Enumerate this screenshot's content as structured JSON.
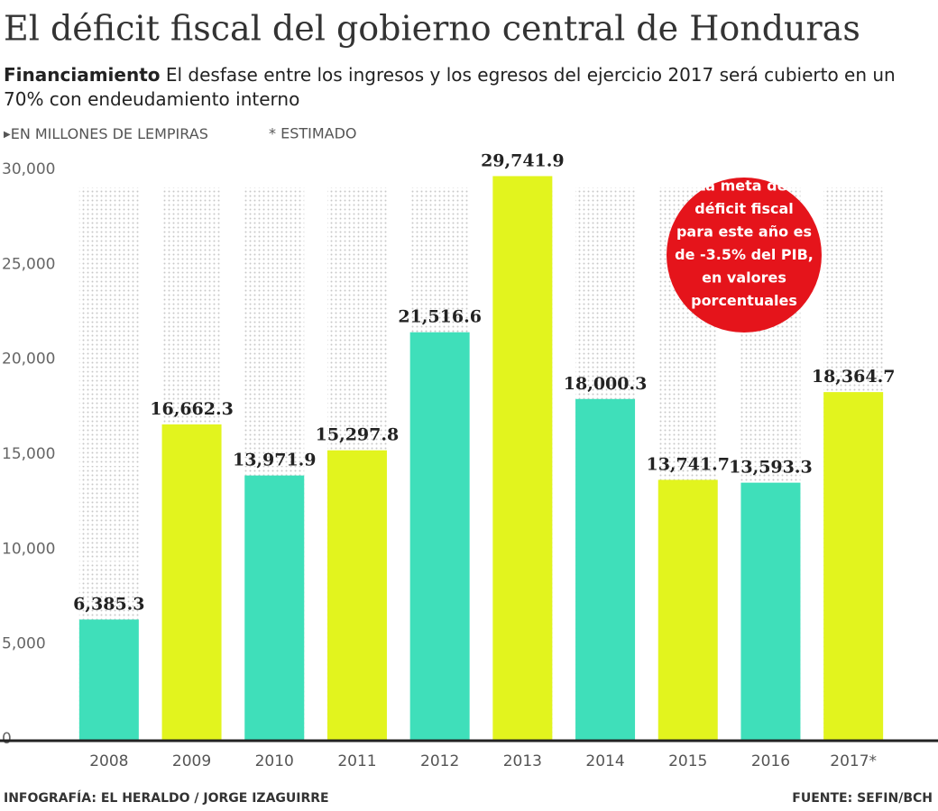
{
  "chart_data": {
    "type": "bar",
    "title": "El déficit fiscal del gobierno central de Honduras",
    "subtitle_lead": "Financiamiento",
    "subtitle": "El desfase entre los ingresos y los egresos del ejercicio 2017 será cubierto en un 70% con endeudamiento interno",
    "unit_note": "EN MILLONES DE LEMPIRAS",
    "estimate_note": "* ESTIMADO",
    "categories": [
      "2008",
      "2009",
      "2010",
      "2011",
      "2012",
      "2013",
      "2014",
      "2015",
      "2016",
      "2017*"
    ],
    "values": [
      6385.3,
      16662.3,
      13971.9,
      15297.8,
      21516.6,
      29741.9,
      18000.3,
      13741.7,
      13593.3,
      18364.7
    ],
    "value_labels": [
      "6,385.3",
      "16,662.3",
      "13,971.9",
      "15,297.8",
      "21,516.6",
      "29,741.9",
      "18,000.3",
      "13,741.7",
      "13,593.3",
      "18,364.7"
    ],
    "colors": [
      "#3fdfba",
      "#e2f41e",
      "#3fdfba",
      "#e2f41e",
      "#3fdfba",
      "#e2f41e",
      "#3fdfba",
      "#e2f41e",
      "#3fdfba",
      "#e2f41e"
    ],
    "ylim": [
      0,
      30000
    ],
    "yticks": [
      0,
      {
        "value": 5000,
        "label": "5,000"
      },
      {
        "value": 10000,
        "label": "10,000"
      },
      {
        "value": 15000,
        "label": "15,000"
      },
      {
        "value": 20000,
        "label": "20,000"
      },
      {
        "value": 25000,
        "label": "25,000"
      },
      {
        "value": 30000,
        "label": "30,000"
      }
    ],
    "grid": true,
    "annotation": [
      "La meta del",
      "déficit fiscal",
      "para este año es",
      "de -3.5% del PIB,",
      "en valores",
      "porcentuales"
    ],
    "credit": "INFOGRAFÍA: EL HERALDO / JORGE IZAGUIRRE",
    "source": "FUENTE: SEFIN/BCH"
  }
}
